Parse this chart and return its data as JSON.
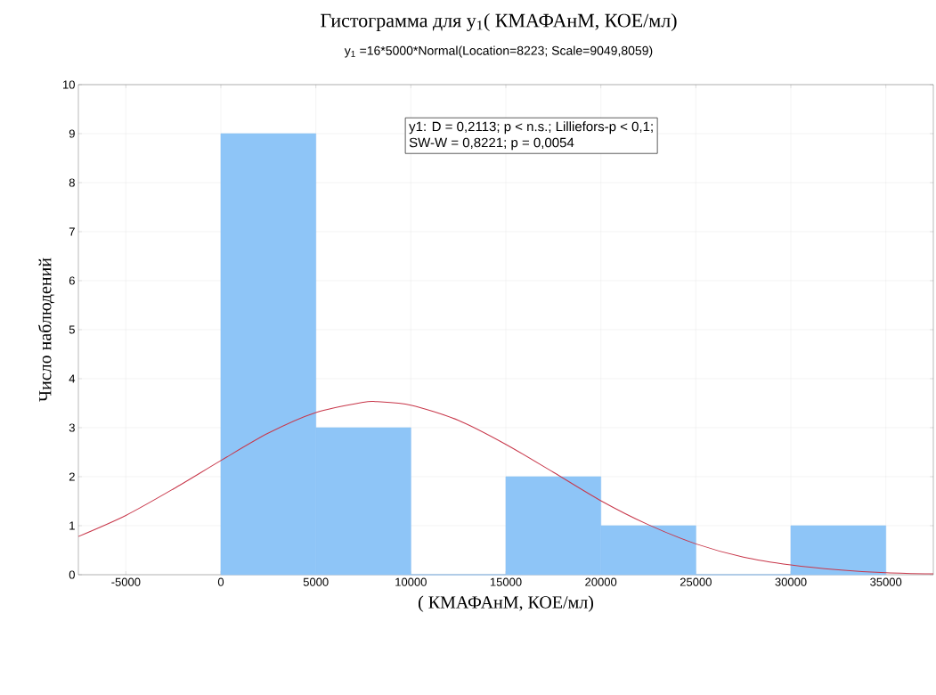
{
  "chart_data": {
    "type": "histogram",
    "title": "Гистограмма для y$_{1}$( КМАФАнМ, КОЕ/мл)",
    "subtitle": "y$_{1}$ =16*5000*Normal(Location=8223; Scale=9049,8059)",
    "xlabel": "( КМАФАнМ, КОЕ/мл)",
    "ylabel": "Число наблюдений",
    "bins": [
      0,
      5000,
      10000,
      15000,
      20000,
      25000,
      30000,
      35000
    ],
    "values": [
      9,
      3,
      0,
      2,
      1,
      0,
      1
    ],
    "color": "#8ec5f7",
    "series": [
      {
        "type": "line",
        "color": "#c8374a",
        "x": [
          -7500,
          -5000,
          -2500,
          0,
          2500,
          5000,
          7500,
          8223,
          10000,
          12500,
          15000,
          17500,
          20000,
          22500,
          25000,
          27500,
          30000,
          32500,
          35000,
          37500
        ],
        "values": [
          0.78,
          1.21,
          1.75,
          2.33,
          2.89,
          3.31,
          3.52,
          3.53,
          3.46,
          3.15,
          2.66,
          2.09,
          1.51,
          1.02,
          0.63,
          0.36,
          0.2,
          0.1,
          0.04,
          0.02
        ]
      }
    ],
    "annotations": [
      "y1:   D = 0,2113; p < n.s.; Lilliefors-p < 0,1;",
      "SW-W = 0,8221; p = 0,0054"
    ],
    "xlim": [
      -7500,
      37500
    ],
    "ylim": [
      0,
      10
    ],
    "xticks": [
      -5000,
      0,
      5000,
      10000,
      15000,
      20000,
      25000,
      30000,
      35000
    ],
    "yticks": [
      0,
      1,
      2,
      3,
      4,
      5,
      6,
      7,
      8,
      9,
      10
    ],
    "grid": true
  }
}
